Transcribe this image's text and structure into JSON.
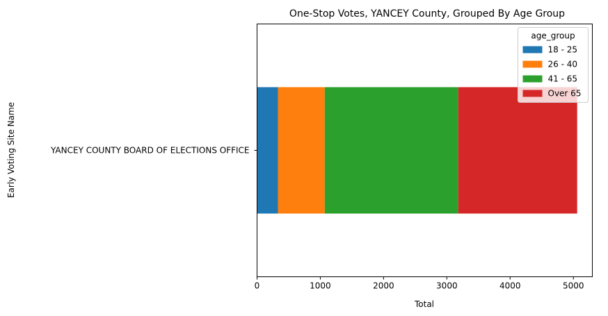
{
  "chart_data": {
    "type": "bar",
    "orientation": "horizontal",
    "stacked": true,
    "title": "One-Stop Votes, YANCEY County, Grouped By Age Group",
    "xlabel": "Total",
    "ylabel": "Early Voting Site Name",
    "categories": [
      "YANCEY COUNTY BOARD OF ELECTIONS OFFICE"
    ],
    "xlim": [
      0,
      5300
    ],
    "xticks": [
      0,
      1000,
      2000,
      3000,
      4000,
      5000
    ],
    "grid": false,
    "legend": {
      "title": "age_group",
      "placement": "top-right"
    },
    "series": [
      {
        "name": "18 - 25",
        "color": "#1f77b4",
        "values": [
          330
        ]
      },
      {
        "name": "26 - 40",
        "color": "#ff7f0e",
        "values": [
          740
        ]
      },
      {
        "name": "41 - 65",
        "color": "#2ca02c",
        "values": [
          2110
        ]
      },
      {
        "name": "Over 65",
        "color": "#d62728",
        "values": [
          1880
        ]
      }
    ]
  }
}
